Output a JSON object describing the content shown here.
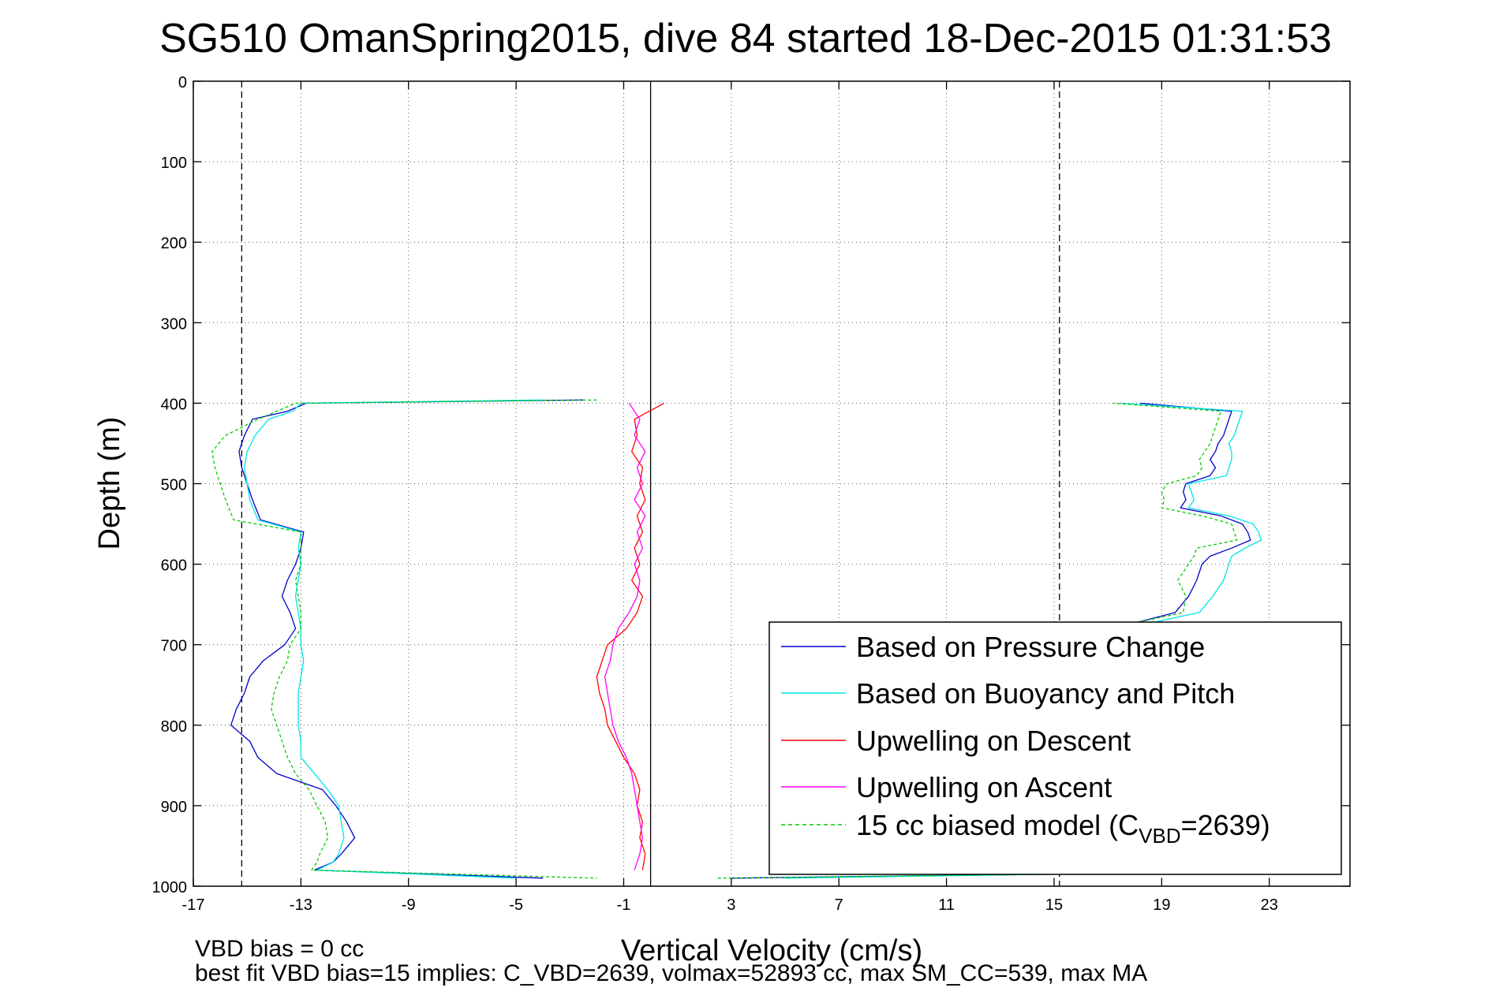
{
  "chart_data": {
    "type": "line",
    "title": "SG510 OmanSpring2015, dive 84 started 18-Dec-2015 01:31:53",
    "xlabel": "Vertical Velocity (cm/s)",
    "ylabel": "Depth (m)",
    "xlim": [
      -17,
      26
    ],
    "ylim": [
      0,
      1000
    ],
    "y_reversed": true,
    "grid": true,
    "x_ticks": [
      -17,
      -13,
      -9,
      -5,
      -1,
      3,
      7,
      11,
      15,
      19,
      23
    ],
    "y_ticks": [
      0,
      100,
      200,
      300,
      400,
      500,
      600,
      700,
      800,
      900,
      1000
    ],
    "reference_lines": {
      "dashed_x": [
        -15.2,
        15.2
      ],
      "solid_x": [
        0
      ]
    },
    "legend_position": "bottom-right",
    "legend": [
      {
        "label": "Based on Pressure Change",
        "color": "#0000cc",
        "dash": false
      },
      {
        "label": "Based on Buoyancy and Pitch",
        "color": "#00e5e5",
        "dash": false
      },
      {
        "label": "Upwelling on Descent",
        "color": "#ff0000",
        "dash": false
      },
      {
        "label": "Upwelling on Ascent",
        "color": "#ff00ff",
        "dash": false
      },
      {
        "label": "15 cc biased model (C",
        "sub": "VBD",
        "tail": "=2639)",
        "color": "#00cc00",
        "dash": true
      }
    ],
    "series": [
      {
        "name": "Based on Pressure Change",
        "color": "#0000cc",
        "dash": false,
        "depth": [
          396,
          400,
          410,
          420,
          440,
          460,
          480,
          500,
          520,
          545,
          560,
          580,
          600,
          620,
          640,
          660,
          680,
          700,
          720,
          740,
          760,
          780,
          800,
          820,
          840,
          860,
          880,
          900,
          920,
          940,
          960,
          970,
          980,
          990
        ],
        "velocity": [
          -2.5,
          -12.8,
          -13.5,
          -14.8,
          -15.1,
          -15.3,
          -15.2,
          -15.0,
          -14.8,
          -14.5,
          -12.9,
          -13.0,
          -13.2,
          -13.5,
          -13.7,
          -13.4,
          -13.2,
          -13.6,
          -14.4,
          -14.9,
          -15.1,
          -15.4,
          -15.6,
          -14.9,
          -14.6,
          -13.9,
          -12.2,
          -11.7,
          -11.3,
          -11.0,
          -11.5,
          -11.8,
          -12.5,
          -4.0
        ]
      },
      {
        "name": "Based on Buoyancy and Pitch",
        "color": "#00e5e5",
        "dash": false,
        "depth": [
          396,
          400,
          410,
          420,
          440,
          460,
          480,
          500,
          520,
          545,
          560,
          580,
          600,
          620,
          640,
          660,
          680,
          700,
          720,
          740,
          760,
          780,
          800,
          820,
          840,
          860,
          880,
          900,
          920,
          940,
          960,
          970,
          980,
          990
        ],
        "velocity": [
          -4.0,
          -13.0,
          -13.3,
          -14.2,
          -14.7,
          -15.0,
          -15.1,
          -15.0,
          -14.9,
          -14.6,
          -13.0,
          -13.1,
          -13.0,
          -13.1,
          -13.2,
          -13.1,
          -13.0,
          -13.0,
          -12.9,
          -13.0,
          -13.1,
          -13.1,
          -13.1,
          -13.0,
          -13.0,
          -12.5,
          -12.0,
          -11.6,
          -11.5,
          -11.4,
          -11.6,
          -11.8,
          -12.4,
          -5.0
        ]
      },
      {
        "name": "Upwelling on Descent",
        "color": "#ff0000",
        "dash": false,
        "depth": [
          400,
          420,
          440,
          460,
          480,
          500,
          520,
          540,
          560,
          580,
          600,
          620,
          640,
          660,
          680,
          700,
          720,
          740,
          760,
          780,
          800,
          820,
          840,
          860,
          880,
          900,
          920,
          940,
          960,
          980
        ],
        "velocity": [
          0.5,
          -0.6,
          -0.5,
          -0.7,
          -0.3,
          -0.4,
          -0.2,
          -0.5,
          -0.3,
          -0.6,
          -0.4,
          -0.7,
          -0.3,
          -0.5,
          -0.9,
          -1.6,
          -1.8,
          -2.0,
          -1.9,
          -1.7,
          -1.6,
          -1.3,
          -1.0,
          -0.6,
          -0.4,
          -0.5,
          -0.3,
          -0.4,
          -0.2,
          -0.3
        ]
      },
      {
        "name": "Upwelling on Ascent",
        "color": "#ff00ff",
        "dash": false,
        "depth": [
          400,
          420,
          440,
          460,
          480,
          500,
          520,
          540,
          560,
          580,
          600,
          620,
          640,
          660,
          680,
          700,
          720,
          740,
          760,
          780,
          800,
          820,
          840,
          860,
          880,
          900,
          920,
          940,
          960,
          980
        ],
        "velocity": [
          -0.8,
          -0.4,
          -0.6,
          -0.2,
          -0.5,
          -0.3,
          -0.6,
          -0.2,
          -0.5,
          -0.3,
          -0.6,
          -0.4,
          -0.5,
          -0.8,
          -1.2,
          -1.4,
          -1.5,
          -1.7,
          -1.6,
          -1.5,
          -1.4,
          -1.2,
          -0.9,
          -0.7,
          -0.6,
          -0.5,
          -0.4,
          -0.3,
          -0.4,
          -0.6
        ]
      },
      {
        "name": "15 cc biased model",
        "color": "#00cc00",
        "dash": true,
        "depth": [
          396,
          400,
          420,
          440,
          460,
          480,
          500,
          520,
          545,
          560,
          580,
          600,
          620,
          640,
          660,
          680,
          700,
          720,
          740,
          760,
          780,
          800,
          820,
          840,
          860,
          880,
          900,
          920,
          940,
          960,
          970,
          980,
          990
        ],
        "velocity": [
          -2.0,
          -13.2,
          -14.6,
          -15.8,
          -16.3,
          -16.2,
          -16.0,
          -15.8,
          -15.5,
          -13.0,
          -13.0,
          -13.0,
          -13.2,
          -13.1,
          -13.0,
          -13.0,
          -13.4,
          -13.5,
          -13.8,
          -14.0,
          -14.1,
          -13.9,
          -13.7,
          -13.5,
          -13.2,
          -12.7,
          -12.4,
          -12.1,
          -12.0,
          -12.3,
          -12.4,
          -12.6,
          -2.0
        ]
      },
      {
        "name": "Based on Pressure Change ascent",
        "color": "#0000cc",
        "dash": false,
        "depth": [
          990,
          985,
          970,
          940,
          900,
          860,
          820,
          780,
          740,
          700,
          680,
          660,
          640,
          620,
          600,
          590,
          580,
          570,
          560,
          550,
          540,
          530,
          520,
          510,
          500,
          490,
          480,
          470,
          460,
          450,
          440,
          430,
          420,
          410,
          400
        ],
        "velocity": [
          3.0,
          15.2,
          15.5,
          15.6,
          15.7,
          15.8,
          15.8,
          15.9,
          16.0,
          16.0,
          17.2,
          19.5,
          20.0,
          20.3,
          20.5,
          20.8,
          21.6,
          22.3,
          22.2,
          22.0,
          21.2,
          19.7,
          19.9,
          19.8,
          19.9,
          20.8,
          21.0,
          20.8,
          21.0,
          21.1,
          21.3,
          21.4,
          21.5,
          21.6,
          18.2
        ]
      },
      {
        "name": "Based on Buoyancy and Pitch ascent",
        "color": "#00e5e5",
        "dash": false,
        "depth": [
          990,
          985,
          970,
          940,
          900,
          860,
          820,
          780,
          740,
          700,
          680,
          660,
          640,
          620,
          600,
          590,
          580,
          570,
          560,
          550,
          540,
          530,
          520,
          510,
          500,
          490,
          480,
          470,
          460,
          450,
          440,
          430,
          420,
          410,
          400
        ],
        "velocity": [
          5.0,
          15.1,
          15.4,
          15.5,
          15.6,
          15.7,
          15.8,
          15.9,
          16.0,
          16.0,
          17.6,
          20.4,
          20.9,
          21.3,
          21.5,
          21.6,
          22.1,
          22.7,
          22.6,
          22.4,
          21.5,
          20.0,
          20.2,
          20.1,
          20.0,
          21.4,
          21.5,
          21.6,
          21.6,
          21.5,
          21.7,
          21.8,
          21.9,
          22.0,
          17.5
        ]
      },
      {
        "name": "15 cc biased model ascent",
        "color": "#00cc00",
        "dash": true,
        "depth": [
          990,
          985,
          970,
          940,
          900,
          860,
          820,
          780,
          740,
          700,
          680,
          660,
          640,
          620,
          600,
          590,
          580,
          570,
          560,
          550,
          540,
          530,
          520,
          510,
          500,
          490,
          480,
          470,
          460,
          450,
          440,
          430,
          420,
          410,
          400
        ],
        "velocity": [
          2.5,
          15.0,
          15.2,
          15.3,
          15.4,
          15.5,
          15.6,
          15.7,
          15.8,
          15.9,
          17.0,
          19.8,
          19.9,
          19.6,
          20.0,
          20.2,
          20.3,
          21.8,
          21.7,
          21.6,
          20.5,
          19.0,
          19.1,
          19.0,
          19.2,
          20.3,
          20.5,
          20.4,
          20.6,
          20.8,
          20.9,
          21.0,
          21.1,
          21.2,
          17.2
        ]
      }
    ],
    "annotations": [
      "VBD bias = 0 cc",
      "best fit VBD bias=15 implies: C_VBD=2639, volmax=52893 cc, max SM_CC=539, max MA"
    ]
  }
}
